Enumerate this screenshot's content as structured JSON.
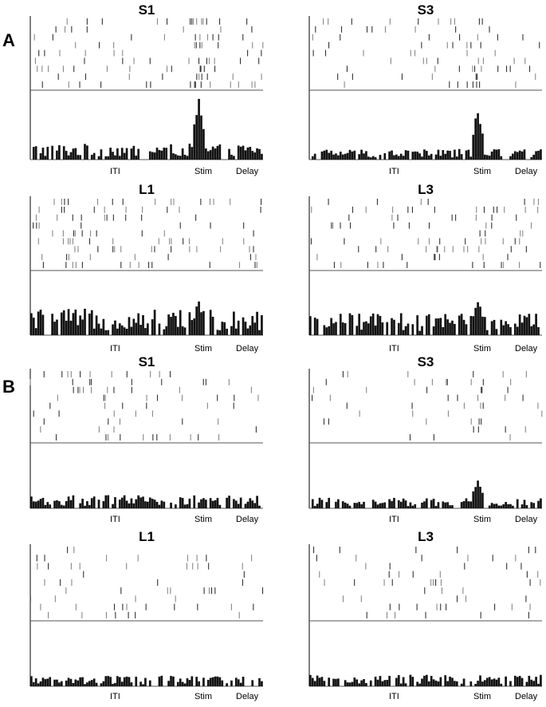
{
  "section_labels": [
    "A",
    "B"
  ],
  "chart_data": [
    {
      "type": "raster_psth",
      "section": "A",
      "title": "S1",
      "xtick_labels": [
        "ITI",
        "Stim",
        "Delay"
      ],
      "n_trials": 9,
      "n_bins": 100,
      "activity_profile": {
        "baseline": 0.18,
        "peaks": [
          {
            "at": "Stim",
            "height": 1.0
          }
        ]
      }
    },
    {
      "type": "raster_psth",
      "section": "A",
      "title": "S3",
      "xtick_labels": [
        "ITI",
        "Stim",
        "Delay"
      ],
      "n_trials": 9,
      "n_bins": 100,
      "activity_profile": {
        "baseline": 0.12,
        "peaks": [
          {
            "at": "Stim",
            "height": 0.85
          }
        ]
      }
    },
    {
      "type": "raster_psth",
      "section": "A",
      "title": "L1",
      "xtick_labels": [
        "ITI",
        "Stim",
        "Delay"
      ],
      "n_trials": 9,
      "n_bins": 100,
      "activity_profile": {
        "baseline": 0.3,
        "peaks": [
          {
            "at": "Stim",
            "height": 0.55
          }
        ]
      }
    },
    {
      "type": "raster_psth",
      "section": "A",
      "title": "L3",
      "xtick_labels": [
        "ITI",
        "Stim",
        "Delay"
      ],
      "n_trials": 9,
      "n_bins": 100,
      "activity_profile": {
        "baseline": 0.25,
        "peaks": [
          {
            "at": "Stim",
            "height": 0.6
          }
        ]
      }
    },
    {
      "type": "raster_psth",
      "section": "B",
      "title": "S1",
      "xtick_labels": [
        "ITI",
        "Stim",
        "Delay"
      ],
      "n_trials": 9,
      "n_bins": 100,
      "activity_profile": {
        "baseline": 0.15,
        "peaks": []
      }
    },
    {
      "type": "raster_psth",
      "section": "B",
      "title": "S3",
      "xtick_labels": [
        "ITI",
        "Stim",
        "Delay"
      ],
      "n_trials": 9,
      "n_bins": 100,
      "activity_profile": {
        "baseline": 0.12,
        "peaks": [
          {
            "at": "Stim",
            "height": 0.5
          }
        ]
      }
    },
    {
      "type": "raster_psth",
      "section": "B",
      "title": "L1",
      "xtick_labels": [
        "ITI",
        "Stim",
        "Delay"
      ],
      "n_trials": 9,
      "n_bins": 100,
      "activity_profile": {
        "baseline": 0.12,
        "peaks": []
      }
    },
    {
      "type": "raster_psth",
      "section": "B",
      "title": "L3",
      "xtick_labels": [
        "ITI",
        "Stim",
        "Delay"
      ],
      "n_trials": 9,
      "n_bins": 100,
      "activity_profile": {
        "baseline": 0.13,
        "peaks": []
      }
    }
  ]
}
